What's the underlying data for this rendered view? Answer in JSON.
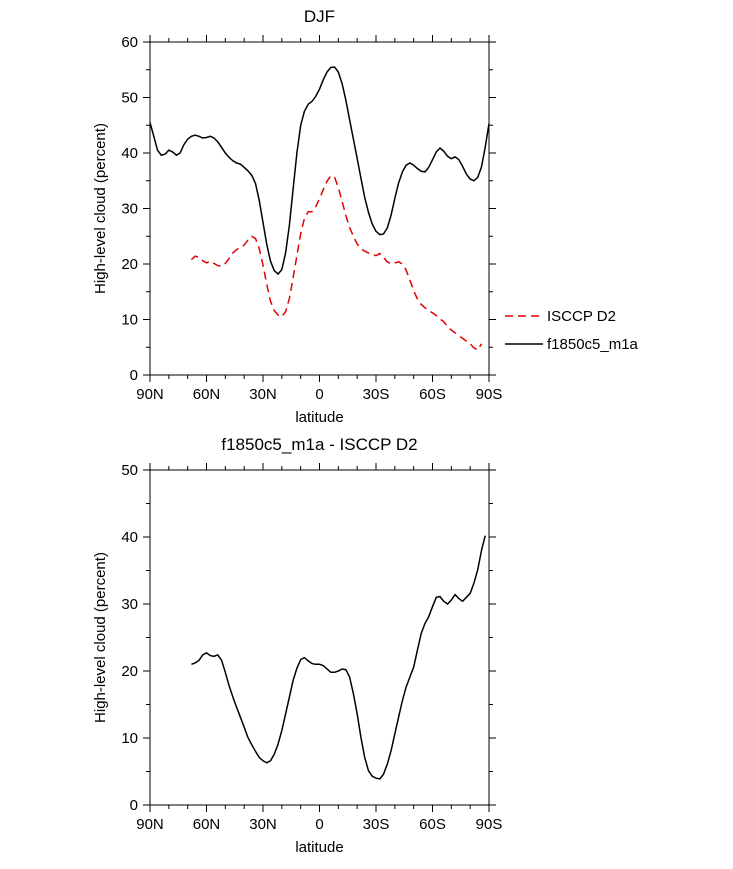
{
  "chart_data": [
    {
      "type": "line",
      "title": "DJF",
      "xlabel": "latitude",
      "ylabel": "High-level cloud (percent)",
      "ylim": [
        0,
        60
      ],
      "yticks": [
        0,
        10,
        20,
        30,
        40,
        50,
        60
      ],
      "xlim": [
        90,
        -90
      ],
      "xticks": [
        {
          "lat": 90,
          "label": "90N"
        },
        {
          "lat": 60,
          "label": "60N"
        },
        {
          "lat": 30,
          "label": "30N"
        },
        {
          "lat": 0,
          "label": "0"
        },
        {
          "lat": -30,
          "label": "30S"
        },
        {
          "lat": -60,
          "label": "60S"
        },
        {
          "lat": -90,
          "label": "90S"
        }
      ],
      "grid": false,
      "legend": {
        "position": "right-outside",
        "items": [
          {
            "label": "ISCCP D2",
            "color": "#e10000",
            "dash": true
          },
          {
            "label": "f1850c5_m1a",
            "color": "#000000",
            "dash": false
          }
        ]
      },
      "series": [
        {
          "name": "ISCCP D2",
          "color": "#e10000",
          "dash": true,
          "points": [
            [
              68,
              20.8
            ],
            [
              66,
              21.4
            ],
            [
              64,
              21.2
            ],
            [
              62,
              20.6
            ],
            [
              60,
              20.2
            ],
            [
              58,
              20.5
            ],
            [
              56,
              20.1
            ],
            [
              54,
              19.7
            ],
            [
              52,
              19.6
            ],
            [
              50,
              20.1
            ],
            [
              48,
              21.0
            ],
            [
              46,
              22.0
            ],
            [
              44,
              22.6
            ],
            [
              42,
              23.0
            ],
            [
              40,
              23.4
            ],
            [
              38,
              24.3
            ],
            [
              36,
              25.0
            ],
            [
              34,
              24.6
            ],
            [
              32,
              22.8
            ],
            [
              30,
              19.8
            ],
            [
              28,
              16.3
            ],
            [
              26,
              13.3
            ],
            [
              24,
              11.6
            ],
            [
              22,
              10.8
            ],
            [
              20,
              10.5
            ],
            [
              18,
              11.4
            ],
            [
              16,
              13.8
            ],
            [
              14,
              17.5
            ],
            [
              12,
              21.5
            ],
            [
              10,
              25.5
            ],
            [
              8,
              28.2
            ],
            [
              6,
              29.4
            ],
            [
              4,
              29.4
            ],
            [
              2,
              30.3
            ],
            [
              0,
              31.8
            ],
            [
              -2,
              33.4
            ],
            [
              -4,
              34.9
            ],
            [
              -6,
              35.9
            ],
            [
              -8,
              35.6
            ],
            [
              -10,
              33.8
            ],
            [
              -12,
              31.3
            ],
            [
              -14,
              28.7
            ],
            [
              -16,
              26.6
            ],
            [
              -18,
              25.0
            ],
            [
              -20,
              23.6
            ],
            [
              -22,
              22.8
            ],
            [
              -24,
              22.3
            ],
            [
              -26,
              22.0
            ],
            [
              -28,
              21.8
            ],
            [
              -30,
              21.5
            ],
            [
              -32,
              21.9
            ],
            [
              -34,
              21.2
            ],
            [
              -36,
              20.4
            ],
            [
              -38,
              20.0
            ],
            [
              -40,
              20.2
            ],
            [
              -42,
              20.4
            ],
            [
              -44,
              20.0
            ],
            [
              -46,
              18.9
            ],
            [
              -48,
              17.1
            ],
            [
              -50,
              15.2
            ],
            [
              -52,
              13.7
            ],
            [
              -54,
              12.7
            ],
            [
              -56,
              12.1
            ],
            [
              -58,
              11.6
            ],
            [
              -60,
              11.2
            ],
            [
              -62,
              10.7
            ],
            [
              -64,
              10.1
            ],
            [
              -66,
              9.6
            ],
            [
              -68,
              8.7
            ],
            [
              -70,
              8.1
            ],
            [
              -72,
              7.6
            ],
            [
              -74,
              7.1
            ],
            [
              -76,
              6.6
            ],
            [
              -78,
              6.1
            ],
            [
              -80,
              5.6
            ],
            [
              -82,
              4.9
            ],
            [
              -84,
              4.5
            ],
            [
              -86,
              5.6
            ]
          ]
        },
        {
          "name": "f1850c5_m1a",
          "color": "#000000",
          "dash": false,
          "points": [
            [
              90,
              45.5
            ],
            [
              88,
              43.0
            ],
            [
              86,
              40.5
            ],
            [
              84,
              39.6
            ],
            [
              82,
              39.8
            ],
            [
              80,
              40.5
            ],
            [
              78,
              40.2
            ],
            [
              76,
              39.6
            ],
            [
              74,
              40.0
            ],
            [
              72,
              41.5
            ],
            [
              70,
              42.5
            ],
            [
              68,
              43.0
            ],
            [
              66,
              43.2
            ],
            [
              64,
              43.0
            ],
            [
              62,
              42.7
            ],
            [
              60,
              42.8
            ],
            [
              58,
              43.0
            ],
            [
              56,
              42.7
            ],
            [
              54,
              42.0
            ],
            [
              52,
              41.0
            ],
            [
              50,
              40.0
            ],
            [
              48,
              39.2
            ],
            [
              46,
              38.6
            ],
            [
              44,
              38.2
            ],
            [
              42,
              38.0
            ],
            [
              40,
              37.4
            ],
            [
              38,
              36.8
            ],
            [
              36,
              36.0
            ],
            [
              34,
              34.5
            ],
            [
              32,
              31.5
            ],
            [
              30,
              27.5
            ],
            [
              28,
              23.5
            ],
            [
              26,
              20.5
            ],
            [
              24,
              18.8
            ],
            [
              22,
              18.2
            ],
            [
              20,
              19.0
            ],
            [
              18,
              22.0
            ],
            [
              16,
              27.0
            ],
            [
              14,
              33.5
            ],
            [
              12,
              40.0
            ],
            [
              10,
              45.0
            ],
            [
              8,
              47.5
            ],
            [
              6,
              48.8
            ],
            [
              4,
              49.3
            ],
            [
              2,
              50.2
            ],
            [
              0,
              51.5
            ],
            [
              -2,
              53.2
            ],
            [
              -4,
              54.6
            ],
            [
              -6,
              55.4
            ],
            [
              -8,
              55.5
            ],
            [
              -10,
              54.6
            ],
            [
              -12,
              52.5
            ],
            [
              -14,
              49.5
            ],
            [
              -16,
              46.0
            ],
            [
              -18,
              42.5
            ],
            [
              -20,
              39.0
            ],
            [
              -22,
              35.5
            ],
            [
              -24,
              32.0
            ],
            [
              -26,
              29.3
            ],
            [
              -28,
              27.2
            ],
            [
              -30,
              25.9
            ],
            [
              -32,
              25.3
            ],
            [
              -34,
              25.4
            ],
            [
              -36,
              26.5
            ],
            [
              -38,
              28.8
            ],
            [
              -40,
              31.8
            ],
            [
              -42,
              34.6
            ],
            [
              -44,
              36.6
            ],
            [
              -46,
              37.8
            ],
            [
              -48,
              38.2
            ],
            [
              -50,
              37.8
            ],
            [
              -52,
              37.2
            ],
            [
              -54,
              36.7
            ],
            [
              -56,
              36.6
            ],
            [
              -58,
              37.4
            ],
            [
              -60,
              38.8
            ],
            [
              -62,
              40.2
            ],
            [
              -64,
              40.9
            ],
            [
              -66,
              40.3
            ],
            [
              -68,
              39.4
            ],
            [
              -70,
              39.0
            ],
            [
              -72,
              39.3
            ],
            [
              -74,
              38.8
            ],
            [
              -76,
              37.6
            ],
            [
              -78,
              36.2
            ],
            [
              -80,
              35.3
            ],
            [
              -82,
              35.0
            ],
            [
              -84,
              35.6
            ],
            [
              -86,
              37.5
            ],
            [
              -88,
              41.0
            ],
            [
              -90,
              45.3
            ]
          ]
        }
      ]
    },
    {
      "type": "line",
      "title": "f1850c5_m1a - ISCCP D2",
      "xlabel": "latitude",
      "ylabel": "High-level cloud (percent)",
      "ylim": [
        0,
        50
      ],
      "yticks": [
        0,
        10,
        20,
        30,
        40,
        50
      ],
      "xlim": [
        90,
        -90
      ],
      "xticks": [
        {
          "lat": 90,
          "label": "90N"
        },
        {
          "lat": 60,
          "label": "60N"
        },
        {
          "lat": 30,
          "label": "30N"
        },
        {
          "lat": 0,
          "label": "0"
        },
        {
          "lat": -30,
          "label": "30S"
        },
        {
          "lat": -60,
          "label": "60S"
        },
        {
          "lat": -90,
          "label": "90S"
        }
      ],
      "grid": false,
      "series": [
        {
          "name": "f1850c5_m1a - ISCCP D2",
          "color": "#000000",
          "dash": false,
          "points": [
            [
              68,
              21.0
            ],
            [
              66,
              21.2
            ],
            [
              64,
              21.6
            ],
            [
              62,
              22.4
            ],
            [
              60,
              22.7
            ],
            [
              58,
              22.3
            ],
            [
              56,
              22.2
            ],
            [
              54,
              22.4
            ],
            [
              52,
              21.6
            ],
            [
              50,
              19.8
            ],
            [
              48,
              17.8
            ],
            [
              46,
              16.1
            ],
            [
              44,
              14.6
            ],
            [
              42,
              13.1
            ],
            [
              40,
              11.6
            ],
            [
              38,
              10.1
            ],
            [
              36,
              9.0
            ],
            [
              34,
              8.0
            ],
            [
              32,
              7.1
            ],
            [
              30,
              6.6
            ],
            [
              28,
              6.3
            ],
            [
              26,
              6.6
            ],
            [
              24,
              7.6
            ],
            [
              22,
              9.1
            ],
            [
              20,
              11.1
            ],
            [
              18,
              13.6
            ],
            [
              16,
              16.1
            ],
            [
              14,
              18.6
            ],
            [
              12,
              20.4
            ],
            [
              10,
              21.7
            ],
            [
              8,
              22.0
            ],
            [
              6,
              21.5
            ],
            [
              4,
              21.1
            ],
            [
              2,
              21.0
            ],
            [
              0,
              21.0
            ],
            [
              -2,
              20.8
            ],
            [
              -4,
              20.3
            ],
            [
              -6,
              19.8
            ],
            [
              -8,
              19.8
            ],
            [
              -10,
              20.0
            ],
            [
              -12,
              20.3
            ],
            [
              -14,
              20.2
            ],
            [
              -16,
              19.1
            ],
            [
              -18,
              16.6
            ],
            [
              -20,
              13.6
            ],
            [
              -22,
              10.1
            ],
            [
              -24,
              7.1
            ],
            [
              -26,
              5.1
            ],
            [
              -28,
              4.3
            ],
            [
              -30,
              4.0
            ],
            [
              -32,
              3.9
            ],
            [
              -34,
              4.6
            ],
            [
              -36,
              6.1
            ],
            [
              -38,
              8.1
            ],
            [
              -40,
              10.6
            ],
            [
              -42,
              13.1
            ],
            [
              -44,
              15.6
            ],
            [
              -46,
              17.6
            ],
            [
              -48,
              19.1
            ],
            [
              -50,
              20.6
            ],
            [
              -52,
              23.1
            ],
            [
              -54,
              25.6
            ],
            [
              -56,
              27.1
            ],
            [
              -58,
              28.1
            ],
            [
              -60,
              29.6
            ],
            [
              -62,
              31.0
            ],
            [
              -64,
              31.1
            ],
            [
              -66,
              30.4
            ],
            [
              -68,
              30.0
            ],
            [
              -70,
              30.6
            ],
            [
              -72,
              31.4
            ],
            [
              -74,
              30.8
            ],
            [
              -76,
              30.4
            ],
            [
              -78,
              31.0
            ],
            [
              -80,
              31.6
            ],
            [
              -82,
              33.1
            ],
            [
              -84,
              35.1
            ],
            [
              -86,
              38.0
            ],
            [
              -88,
              40.2
            ]
          ]
        }
      ]
    }
  ]
}
